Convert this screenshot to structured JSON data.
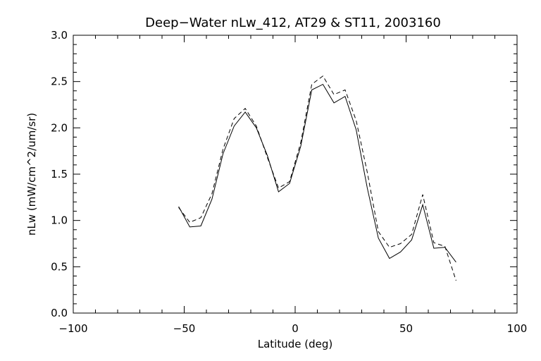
{
  "chart_data": {
    "type": "line",
    "title": "Deep−Water nLw_412, AT29 & ST11, 2003160",
    "xlabel": "Latitude (deg)",
    "ylabel": "nLw (mW/cm^2/um/sr)",
    "xlim": [
      -100,
      100
    ],
    "ylim": [
      0.0,
      3.0
    ],
    "xticks": [
      -100,
      -50,
      0,
      50,
      100
    ],
    "xtick_labels": [
      "−100",
      "−50",
      "0",
      "50",
      "100"
    ],
    "yticks": [
      0.0,
      0.5,
      1.0,
      1.5,
      2.0,
      2.5,
      3.0
    ],
    "ytick_labels": [
      "0.0",
      "0.5",
      "1.0",
      "1.5",
      "2.0",
      "2.5",
      "3.0"
    ],
    "grid": false,
    "legend": "none",
    "series": [
      {
        "style": "solid",
        "x": [
          -52.5,
          -47.5,
          -42.5,
          -37.5,
          -32.5,
          -27.5,
          -22.5,
          -17.5,
          -12.5,
          -7.5,
          -2.5,
          2.5,
          7.5,
          12.5,
          17.5,
          22.5,
          27.5,
          32.5,
          37.5,
          42.5,
          47.5,
          52.5,
          57.5,
          62.5,
          67.5,
          72.5
        ],
        "y": [
          1.15,
          0.93,
          0.94,
          1.23,
          1.72,
          2.02,
          2.17,
          2.0,
          1.7,
          1.31,
          1.4,
          1.8,
          2.41,
          2.47,
          2.27,
          2.34,
          1.98,
          1.35,
          0.81,
          0.59,
          0.66,
          0.79,
          1.17,
          0.7,
          0.71,
          0.55
        ]
      },
      {
        "style": "dashed",
        "x": [
          -52.5,
          -47.5,
          -42.5,
          -37.5,
          -32.5,
          -27.5,
          -22.5,
          -17.5,
          -12.5,
          -7.5,
          -2.5,
          2.5,
          7.5,
          12.5,
          17.5,
          22.5,
          27.5,
          32.5,
          37.5,
          42.5,
          47.5,
          52.5,
          57.5,
          62.5,
          67.5,
          72.5
        ],
        "y": [
          1.14,
          0.98,
          1.03,
          1.29,
          1.77,
          2.1,
          2.21,
          2.02,
          1.68,
          1.35,
          1.42,
          1.84,
          2.47,
          2.56,
          2.36,
          2.41,
          2.08,
          1.52,
          0.88,
          0.71,
          0.75,
          0.85,
          1.28,
          0.76,
          0.72,
          0.35
        ]
      }
    ]
  }
}
